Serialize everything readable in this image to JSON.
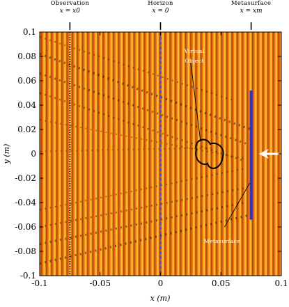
{
  "chart_data": {
    "type": "heatmap",
    "title": "",
    "xlabel": "x (m)",
    "ylabel": "y (m)",
    "xlim": [
      -0.1,
      0.1
    ],
    "ylim": [
      -0.1,
      0.1
    ],
    "x_ticks": [
      "-0.1",
      "-0.05",
      "0",
      "0.05",
      "0.1"
    ],
    "y_ticks": [
      "0.1",
      "0.08",
      "0.06",
      "0.04",
      "0.02",
      "0",
      "-0.02",
      "-0.04",
      "-0.06",
      "-0.08",
      "-0.1"
    ],
    "colors": {
      "background": "#f06a0f",
      "bright": "#ffd23a",
      "dark": "#1a1208",
      "metasurface": "#2b33d6",
      "horizon": "#3a50e0",
      "arrow": "#ffffff"
    },
    "vertical_lines": [
      {
        "name": "Observation",
        "label_top": "Observation",
        "label_eq": "x = x0",
        "x": -0.075,
        "style": "dotted",
        "color": "#000000"
      },
      {
        "name": "Horizon",
        "label_top": "Horizon",
        "label_eq": "x = 0",
        "x": 0.0,
        "style": "dashed",
        "color": "#3a50e0"
      },
      {
        "name": "Metasurface",
        "label_top": "Metasurface",
        "label_eq": "x = xm",
        "x": 0.075,
        "style": "solid",
        "color": "#2b33d6"
      }
    ],
    "metasurface_segment": {
      "x": 0.075,
      "y_range": [
        -0.054,
        0.052
      ]
    },
    "virtual_object": {
      "label": "Virtual Object",
      "center": [
        0.04,
        0.0
      ],
      "outline_color": "#000000"
    },
    "incident_arrow": {
      "x_range": [
        0.078,
        0.1
      ],
      "y": 0.0,
      "direction": "left",
      "color": "#ffffff"
    },
    "annotations": [
      {
        "text": "Virtual Object",
        "position": "upper-right of object"
      },
      {
        "text": "Metasurface",
        "position": "below metasurface"
      }
    ]
  }
}
